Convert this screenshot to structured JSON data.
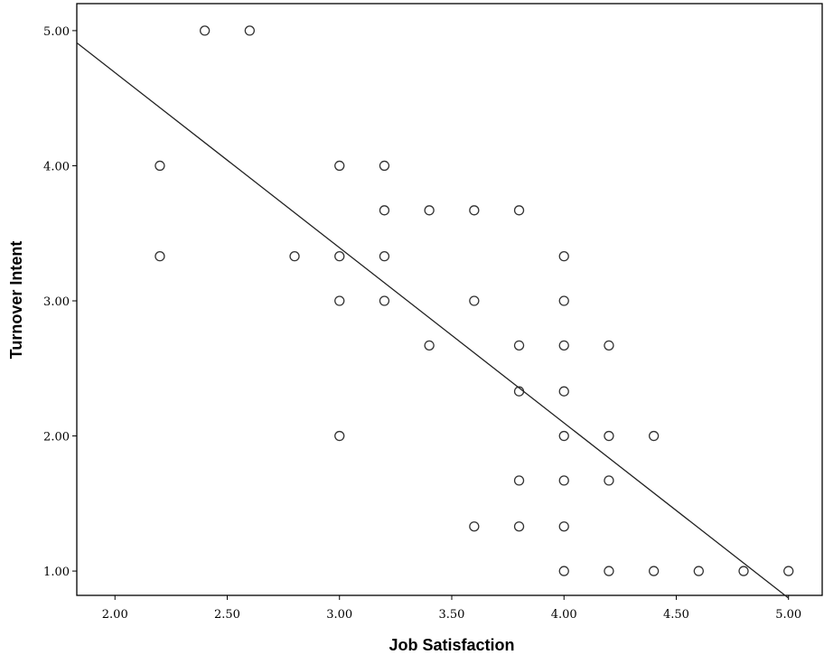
{
  "chart_data": {
    "type": "scatter",
    "xlabel": "Job Satisfaction",
    "ylabel": "Turnover Intent",
    "xlim": [
      1.83,
      5.15
    ],
    "ylim": [
      0.82,
      5.2
    ],
    "x_ticks": [
      "2.00",
      "2.50",
      "3.00",
      "3.50",
      "4.00",
      "4.50",
      "5.00"
    ],
    "y_ticks": [
      "1.00",
      "2.00",
      "3.00",
      "4.00",
      "5.00"
    ],
    "grid": false,
    "points": [
      {
        "x": 2.4,
        "y": 5.0
      },
      {
        "x": 2.6,
        "y": 5.0
      },
      {
        "x": 2.2,
        "y": 4.0
      },
      {
        "x": 2.2,
        "y": 3.33
      },
      {
        "x": 2.8,
        "y": 3.33
      },
      {
        "x": 3.0,
        "y": 4.0
      },
      {
        "x": 3.0,
        "y": 3.33
      },
      {
        "x": 3.0,
        "y": 3.0
      },
      {
        "x": 3.0,
        "y": 2.0
      },
      {
        "x": 3.2,
        "y": 4.0
      },
      {
        "x": 3.2,
        "y": 3.67
      },
      {
        "x": 3.2,
        "y": 3.33
      },
      {
        "x": 3.2,
        "y": 3.0
      },
      {
        "x": 3.4,
        "y": 3.67
      },
      {
        "x": 3.4,
        "y": 2.67
      },
      {
        "x": 3.6,
        "y": 3.67
      },
      {
        "x": 3.6,
        "y": 3.0
      },
      {
        "x": 3.6,
        "y": 1.33
      },
      {
        "x": 3.8,
        "y": 3.67
      },
      {
        "x": 3.8,
        "y": 2.67
      },
      {
        "x": 3.8,
        "y": 2.33
      },
      {
        "x": 3.8,
        "y": 1.67
      },
      {
        "x": 3.8,
        "y": 1.33
      },
      {
        "x": 4.0,
        "y": 3.33
      },
      {
        "x": 4.0,
        "y": 3.0
      },
      {
        "x": 4.0,
        "y": 2.67
      },
      {
        "x": 4.0,
        "y": 2.33
      },
      {
        "x": 4.0,
        "y": 2.0
      },
      {
        "x": 4.0,
        "y": 1.67
      },
      {
        "x": 4.0,
        "y": 1.33
      },
      {
        "x": 4.0,
        "y": 1.0
      },
      {
        "x": 4.2,
        "y": 2.67
      },
      {
        "x": 4.2,
        "y": 2.0
      },
      {
        "x": 4.2,
        "y": 1.67
      },
      {
        "x": 4.2,
        "y": 1.0
      },
      {
        "x": 4.4,
        "y": 2.0
      },
      {
        "x": 4.4,
        "y": 1.0
      },
      {
        "x": 4.6,
        "y": 1.0
      },
      {
        "x": 4.8,
        "y": 1.0
      },
      {
        "x": 5.0,
        "y": 1.0
      }
    ],
    "fit_line": {
      "x": [
        1.83,
        5.0
      ],
      "y": [
        4.91,
        0.8
      ]
    }
  }
}
